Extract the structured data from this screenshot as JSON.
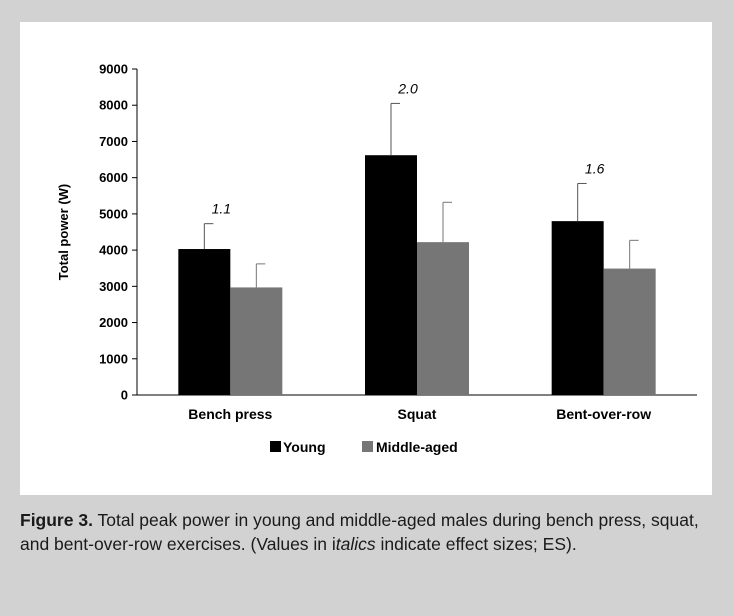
{
  "caption": {
    "label": "Figure 3.",
    "text_1": " Total peak power in young and middle-aged males during bench press, squat, and bent-over-row exercises. (Values in i",
    "text_italic": "talics",
    "text_2": " indicate effect sizes; ES)."
  },
  "colors": {
    "young": "#000000",
    "middle_aged": "#767676",
    "background": "#d2d2d2"
  },
  "chart_data": {
    "type": "bar",
    "categories": [
      "Bench press",
      "Squat",
      "Bent-over-row"
    ],
    "series": [
      {
        "name": "Young",
        "values": [
          4030,
          6620,
          4800
        ],
        "errors": [
          700,
          1430,
          1040
        ]
      },
      {
        "name": "Middle-aged",
        "values": [
          2970,
          4220,
          3490
        ],
        "errors": [
          650,
          1100,
          780
        ]
      }
    ],
    "effect_sizes": [
      "1.1",
      "2.0",
      "1.6"
    ],
    "ylabel": "Total power (W)",
    "xlabel": "",
    "ylim": [
      0,
      9000
    ],
    "yticks": [
      0,
      1000,
      2000,
      3000,
      4000,
      5000,
      6000,
      7000,
      8000,
      9000
    ],
    "grid": false,
    "legend_position": "bottom-center"
  }
}
